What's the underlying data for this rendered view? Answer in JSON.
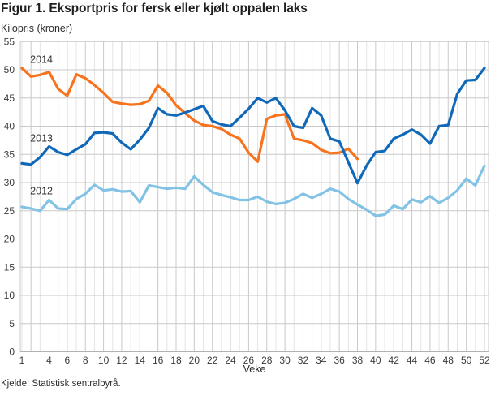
{
  "title": "Figur 1. Eksportpris for fersk eller kjølt oppalen laks",
  "subtitle": "Kilopris (kroner)",
  "source": "Kjelde: Statistisk sentralbyrå.",
  "colors": {
    "grid_major": "#c9c9c9",
    "grid_minor": "#e4e4e4",
    "axis": "#b2b2b2",
    "tick_text": "#3a3a3a",
    "label_text": "#333333"
  },
  "chart_data": {
    "type": "line",
    "title": "Figur 1. Eksportpris for fersk eller kjølt oppalen laks",
    "subtitle": "Kilopris (kroner)",
    "xlabel": "Veke",
    "ylabel": "Kilopris (kroner)",
    "xlim": [
      1,
      52
    ],
    "ylim": [
      0,
      55
    ],
    "grid": "vertical every week (major every 2), horizontal every 5",
    "legend_position": "inline labels at left of lines",
    "yticks": [
      0,
      5,
      10,
      15,
      20,
      25,
      30,
      35,
      40,
      45,
      50,
      55
    ],
    "xtick_labels": [
      1,
      4,
      6,
      8,
      10,
      12,
      14,
      16,
      18,
      20,
      22,
      24,
      26,
      28,
      30,
      32,
      34,
      36,
      38,
      40,
      42,
      44,
      46,
      48,
      50,
      52
    ],
    "x_weeks": [
      1,
      2,
      3,
      4,
      5,
      6,
      7,
      8,
      9,
      10,
      11,
      12,
      13,
      14,
      15,
      16,
      17,
      18,
      19,
      20,
      21,
      22,
      23,
      24,
      25,
      26,
      27,
      28,
      29,
      30,
      31,
      32,
      33,
      34,
      35,
      36,
      37,
      38,
      39,
      40,
      41,
      42,
      43,
      44,
      45,
      46,
      47,
      48,
      49,
      50,
      51,
      52
    ],
    "series": [
      {
        "name": "2014",
        "color": "#f7731e",
        "label": {
          "week": 2,
          "value": 51.8
        },
        "values": [
          50.3,
          48.8,
          49.1,
          49.6,
          46.6,
          45.4,
          49.2,
          48.5,
          47.3,
          45.9,
          44.3,
          44.0,
          43.8,
          43.9,
          44.5,
          47.2,
          45.9,
          43.7,
          42.3,
          41.0,
          40.2,
          40.0,
          39.5,
          38.5,
          37.8,
          35.3,
          33.7,
          41.3,
          41.9,
          42.1,
          37.8,
          37.5,
          37.0,
          35.8,
          35.2,
          35.3,
          36.0,
          34.2,
          null,
          null,
          null,
          null,
          null,
          null,
          null,
          null,
          null,
          null,
          null,
          null,
          null,
          null
        ]
      },
      {
        "name": "2013",
        "color": "#1068b8",
        "label": {
          "week": 2,
          "value": 37.9
        },
        "values": [
          33.4,
          33.2,
          34.5,
          36.4,
          35.4,
          34.9,
          35.9,
          36.8,
          38.8,
          38.9,
          38.7,
          37.1,
          35.9,
          37.6,
          39.7,
          43.2,
          42.1,
          41.9,
          42.4,
          43.0,
          43.6,
          40.9,
          40.3,
          40.0,
          41.5,
          43.1,
          45.0,
          44.2,
          45.0,
          42.8,
          40.0,
          39.7,
          43.2,
          41.9,
          37.8,
          37.3,
          33.6,
          29.9,
          33.0,
          35.4,
          35.6,
          37.8,
          38.5,
          39.4,
          38.5,
          36.9,
          40.0,
          40.2,
          45.7,
          48.1,
          48.2,
          50.3
        ]
      },
      {
        "name": "2012",
        "color": "#82c2e5",
        "label": {
          "week": 2,
          "value": 28.5
        },
        "values": [
          25.7,
          25.4,
          25.0,
          26.9,
          25.4,
          25.3,
          27.1,
          28.0,
          29.6,
          28.6,
          28.8,
          28.4,
          28.5,
          26.5,
          29.5,
          29.2,
          28.9,
          29.1,
          28.9,
          31.1,
          29.6,
          28.3,
          27.8,
          27.4,
          26.9,
          26.9,
          27.5,
          26.6,
          26.2,
          26.4,
          27.1,
          28.0,
          27.3,
          28.0,
          28.9,
          28.4,
          27.1,
          26.1,
          25.2,
          24.1,
          24.3,
          25.9,
          25.3,
          27.0,
          26.5,
          27.6,
          26.4,
          27.3,
          28.6,
          30.7,
          29.5,
          33.0
        ]
      }
    ]
  }
}
